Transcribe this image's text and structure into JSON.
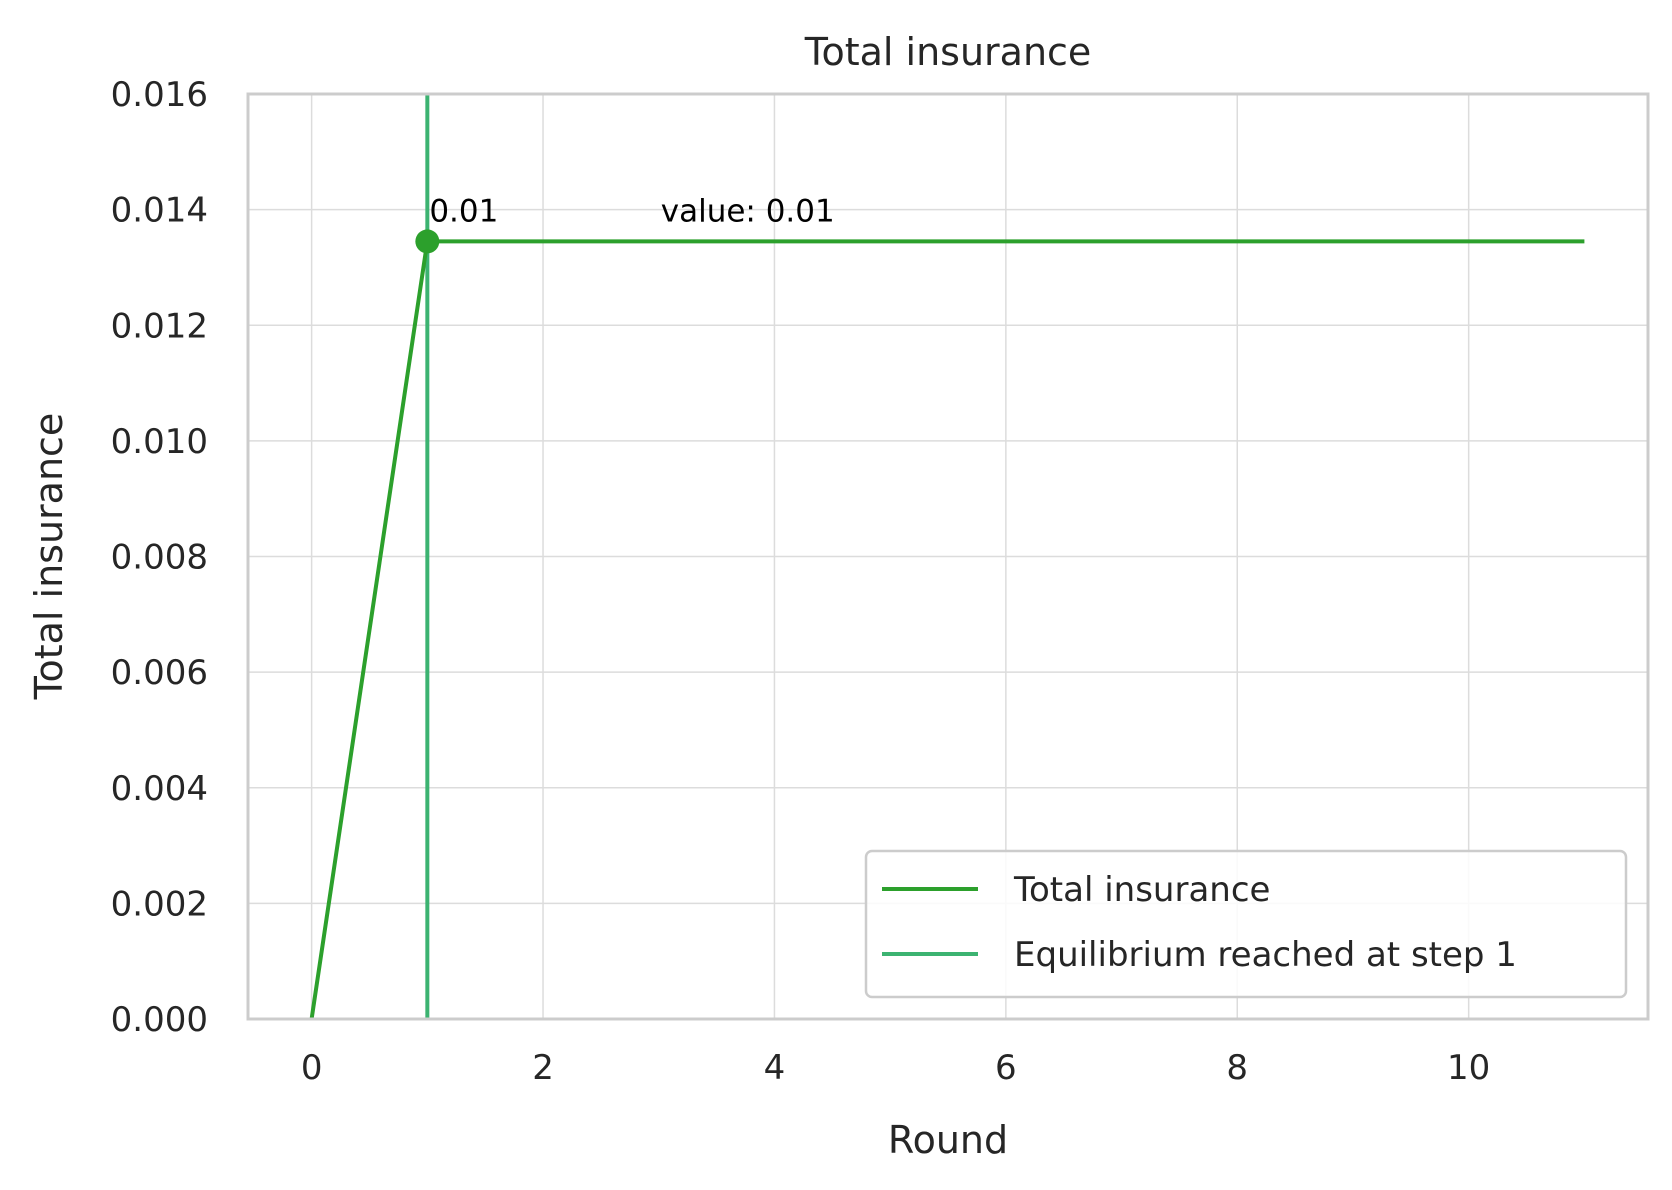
{
  "chart_data": {
    "type": "line",
    "title": "Total insurance",
    "xlabel": "Round",
    "ylabel": "Total insurance",
    "xlim": [
      -0.55,
      11.55
    ],
    "ylim": [
      0,
      0.016
    ],
    "xticks": [
      0,
      2,
      4,
      6,
      8,
      10
    ],
    "xtick_labels": [
      "0",
      "2",
      "4",
      "6",
      "8",
      "10"
    ],
    "yticks": [
      0,
      0.002,
      0.004,
      0.006,
      0.008,
      0.01,
      0.012,
      0.014,
      0.016
    ],
    "ytick_labels": [
      "0.000",
      "0.002",
      "0.004",
      "0.006",
      "0.008",
      "0.010",
      "0.012",
      "0.014",
      "0.016"
    ],
    "grid": true,
    "legend_position": "lower-right",
    "series": [
      {
        "name": "Total insurance",
        "color": "#2ca02c",
        "x": [
          0,
          1,
          2,
          3,
          4,
          5,
          6,
          7,
          8,
          9,
          10,
          11
        ],
        "y": [
          0,
          0.01345,
          0.01345,
          0.01345,
          0.01345,
          0.01345,
          0.01345,
          0.01345,
          0.01345,
          0.01345,
          0.01345,
          0.01345
        ]
      }
    ],
    "vline": {
      "name": "Equilibrium reached at step 1",
      "x": 1,
      "color": "#3cb371"
    },
    "marker": {
      "x": 1,
      "y": 0.01345,
      "color": "#2ca02c"
    },
    "annotations": [
      {
        "text": "0.01",
        "x": 1.0,
        "y": 0.014
      },
      {
        "text": "value: 0.01",
        "x": 3.0,
        "y": 0.014
      }
    ]
  }
}
